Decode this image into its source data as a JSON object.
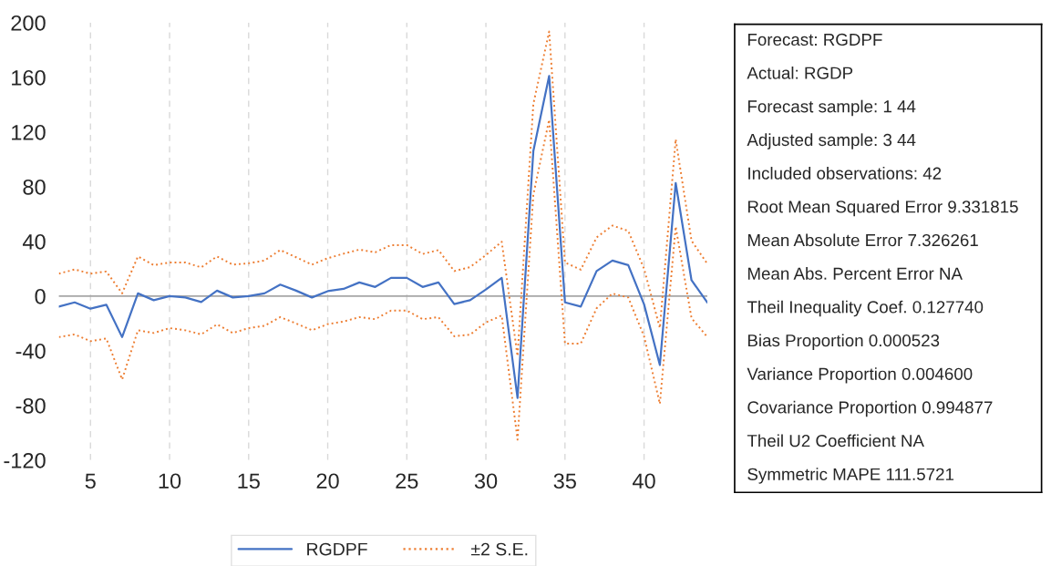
{
  "chart_data": {
    "type": "line",
    "x": [
      3,
      4,
      5,
      6,
      7,
      8,
      9,
      10,
      11,
      12,
      13,
      14,
      15,
      16,
      17,
      18,
      19,
      20,
      21,
      22,
      23,
      24,
      25,
      26,
      27,
      28,
      29,
      30,
      31,
      32,
      33,
      34,
      35,
      36,
      37,
      38,
      39,
      40,
      41,
      42,
      43,
      44
    ],
    "series": [
      {
        "name": "RGDPF",
        "color": "#4472c4",
        "line_style": "solid",
        "values": [
          -7.7,
          -4.6,
          -9.2,
          -6.3,
          -30,
          2,
          -3,
          0,
          -1,
          -4.3,
          4,
          -1,
          0,
          2,
          8.4,
          4,
          -1,
          3.6,
          5.3,
          10,
          6.7,
          13.3,
          13.3,
          6.7,
          10,
          -5.8,
          -3,
          4.8,
          13.3,
          -74.5,
          106,
          161,
          -4.6,
          -7.7,
          18.3,
          26,
          22.7,
          -6,
          -50.4,
          82.7,
          11.6,
          -4.6
        ]
      },
      {
        "name": "±2 S.E.",
        "color": "#ed7d31",
        "line_style": "dotted",
        "values": [
          16.4,
          19.5,
          16.4,
          18,
          2,
          29,
          22.6,
          24.6,
          24.6,
          21,
          29,
          23,
          24,
          26,
          33.7,
          28.4,
          23,
          27.7,
          31,
          34,
          32,
          37.3,
          37.3,
          30.8,
          33.7,
          18.3,
          21.2,
          30,
          39.8,
          -43.9,
          140.5,
          193.5,
          24.6,
          19.3,
          42.9,
          51.6,
          47.7,
          20,
          -23.4,
          114.7,
          40.5,
          23.6
        ]
      },
      {
        "color": "#ed7d31",
        "line_style": "dotted",
        "values": [
          -30,
          -28,
          -33,
          -31,
          -61,
          -25,
          -27,
          -23.4,
          -25,
          -28,
          -20.7,
          -27,
          -23.4,
          -21.7,
          -15.4,
          -20,
          -25,
          -20.5,
          -18.6,
          -15.4,
          -16.9,
          -10.6,
          -10.6,
          -16.9,
          -15.4,
          -29.4,
          -28.2,
          -19.3,
          -14.2,
          -105,
          74.2,
          129,
          -34.7,
          -34.7,
          -8.9,
          1.9,
          -1,
          -29.4,
          -78.8,
          50.8,
          -16.1,
          -29.9
        ]
      }
    ],
    "xlim": [
      3,
      44
    ],
    "xticks": [
      5,
      10,
      15,
      20,
      25,
      30,
      35,
      40
    ],
    "ylim": [
      -120,
      200
    ],
    "yticks": [
      -120,
      -80,
      -40,
      0,
      40,
      80,
      120,
      160,
      200
    ],
    "grid": "x",
    "legend": "bottom",
    "marker": "none",
    "ref_lines": [
      {
        "axis": "y",
        "value": 0,
        "color": "#a6a6a6",
        "line_style": "solid"
      }
    ],
    "annotations": [
      "Forecast: RGDPF",
      "Actual: RGDP",
      "Forecast sample: 1 44",
      "Adjusted sample: 3 44",
      "Included observations: 42",
      "Root Mean Squared Error 9.331815",
      "Mean Absolute Error 7.326261",
      "Mean Abs. Percent Error NA",
      "Theil Inequality Coef. 0.127740",
      "Bias Proportion 0.000523",
      "Variance Proportion 0.004600",
      "Covariance Proportion 0.994877",
      "Theil U2 Coefficient NA",
      "Symmetric MAPE 111.5721"
    ]
  }
}
